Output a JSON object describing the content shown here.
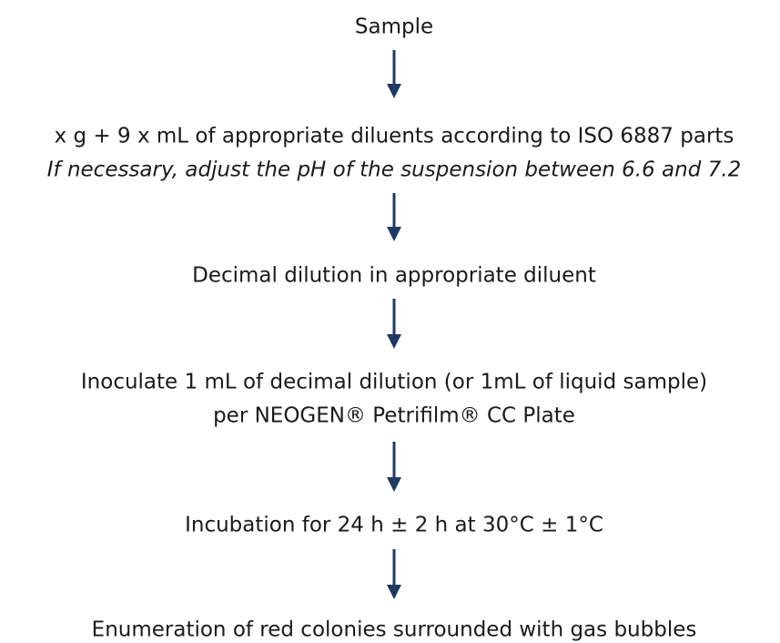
{
  "nodes": [
    {
      "lines": [
        "Sample"
      ]
    },
    {
      "lines": [
        "x g + 9 x mL of appropriate diluents according to ISO 6887 parts"
      ],
      "note": "If necessary, adjust the pH of the suspension between 6.6 and 7.2"
    },
    {
      "lines": [
        "Decimal dilution in appropriate diluent"
      ]
    },
    {
      "lines": [
        "Inoculate 1 mL of decimal dilution (or 1mL of liquid sample)",
        "per NEOGEN® Petrifilm® CC Plate"
      ]
    },
    {
      "lines": [
        "Incubation for 24 h ± 2 h at 30°C ± 1°C"
      ]
    },
    {
      "lines": [
        "Enumeration of red colonies surrounded with gas bubbles"
      ]
    }
  ]
}
